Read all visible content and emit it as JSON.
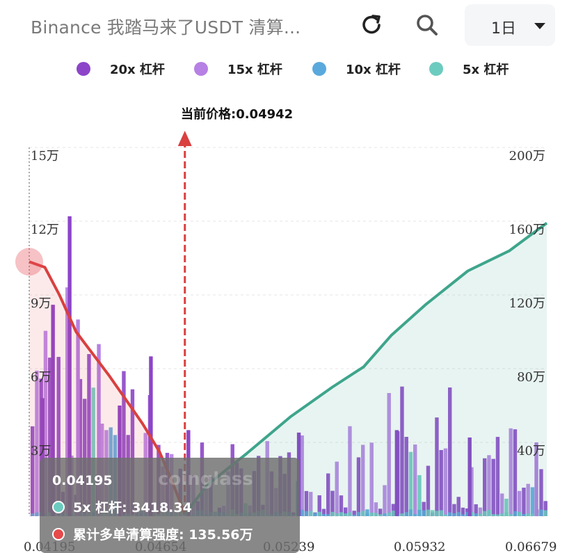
{
  "header": {
    "title": "Binance 我踏马来了USDT 清算...",
    "period_label": "1日"
  },
  "legend": [
    {
      "label": "20x 杠杆",
      "color": "#8c45c8"
    },
    {
      "label": "15x 杠杆",
      "color": "#b680e4"
    },
    {
      "label": "10x 杠杆",
      "color": "#5aa9dd"
    },
    {
      "label": "5x 杠杆",
      "color": "#6ccbbf"
    }
  ],
  "current_price_label": "当前价格:0.04942",
  "tooltip": {
    "title": "0.04195",
    "row1": "5x 杠杆: 3418.34",
    "row2": "累计多单清算强度: 135.56万",
    "row1_color": "#6ccbbf",
    "row2_color": "#e64a4a",
    "watermark": "coinglass"
  },
  "chart_data": {
    "type": "bar",
    "current_price": 0.04942,
    "x_range": [
      0.04195,
      0.06679
    ],
    "x_tick_labels": [
      "0.04195",
      "0.04654",
      "0.05239",
      "0.05932",
      "0.06679"
    ],
    "y_left_ticks": [
      "15万",
      "12万",
      "9万",
      "6万",
      "3万"
    ],
    "y_left_max": 150000,
    "y_right_ticks": [
      "200万",
      "160万",
      "120万",
      "80万",
      "40万"
    ],
    "y_right_max": 2000000,
    "long_cumulative_color": "#d9403f",
    "short_cumulative_color": "#3ea58c",
    "long_cumulative": [
      [
        0.04195,
        1380000
      ],
      [
        0.0427,
        1350000
      ],
      [
        0.0434,
        1200000
      ],
      [
        0.0442,
        1000000
      ],
      [
        0.045,
        880000
      ],
      [
        0.0458,
        760000
      ],
      [
        0.04654,
        640000
      ],
      [
        0.0474,
        500000
      ],
      [
        0.0482,
        350000
      ],
      [
        0.0488,
        190000
      ],
      [
        0.04942,
        10000
      ]
    ],
    "short_cumulative": [
      [
        0.04942,
        10000
      ],
      [
        0.0505,
        170000
      ],
      [
        0.05239,
        340000
      ],
      [
        0.0545,
        540000
      ],
      [
        0.0565,
        700000
      ],
      [
        0.058,
        810000
      ],
      [
        0.05932,
        980000
      ],
      [
        0.061,
        1150000
      ],
      [
        0.063,
        1330000
      ],
      [
        0.065,
        1440000
      ],
      [
        0.06679,
        1590000
      ]
    ],
    "bar_series_sample": [
      {
        "x": 0.0425,
        "value": 48000,
        "series": "20x 杠杆"
      },
      {
        "x": 0.043,
        "value": 86000,
        "series": "20x 杠杆"
      },
      {
        "x": 0.0438,
        "value": 122000,
        "series": "20x 杠杆"
      },
      {
        "x": 0.0442,
        "value": 80000,
        "series": "15x 杠杆"
      },
      {
        "x": 0.0452,
        "value": 70000,
        "series": "15x 杠杆"
      },
      {
        "x": 0.0462,
        "value": 45000,
        "series": "20x 杠杆"
      },
      {
        "x": 0.0477,
        "value": 65000,
        "series": "20x 杠杆"
      },
      {
        "x": 0.0495,
        "value": 35000,
        "series": "20x 杠杆"
      },
      {
        "x": 0.0548,
        "value": 34000,
        "series": "20x 杠杆"
      },
      {
        "x": 0.0595,
        "value": 35000,
        "series": "20x 杠杆"
      },
      {
        "x": 0.063,
        "value": 32000,
        "series": "20x 杠杆"
      },
      {
        "x": 0.0662,
        "value": 30000,
        "series": "15x 杠杆"
      }
    ]
  }
}
